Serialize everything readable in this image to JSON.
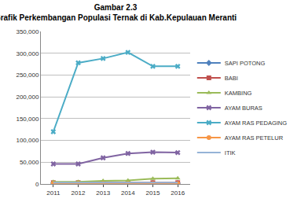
{
  "chart_data": {
    "type": "line",
    "title": "Gambar 2.3",
    "subtitle": "Grafik Perkembangan Populasi Ternak di Kab.Kepulauan Meranti",
    "categories": [
      "2011",
      "2012",
      "2013",
      "2014",
      "2015",
      "2016"
    ],
    "series": [
      {
        "name": "SAPI POTONG",
        "color": "#4f81bd",
        "marker": "diamond",
        "line_style": "solid",
        "values": [
          2000,
          2000,
          2000,
          2000,
          2000,
          2000
        ]
      },
      {
        "name": "BABI",
        "color": "#c0504d",
        "marker": "square",
        "line_style": "solid",
        "values": [
          3000,
          3000,
          3000,
          3000,
          3000,
          3000
        ]
      },
      {
        "name": "KAMBING",
        "color": "#9bbb59",
        "marker": "triangle-up",
        "line_style": "solid",
        "values": [
          5000,
          5000,
          7000,
          8000,
          12000,
          13000
        ]
      },
      {
        "name": "AYAM BURAS",
        "color": "#8064a2",
        "marker": "x",
        "line_style": "solid",
        "values": [
          46000,
          46000,
          60000,
          70000,
          73000,
          72000
        ]
      },
      {
        "name": "AYAM RAS PEDAGING",
        "color": "#4bacc6",
        "marker": "x",
        "line_style": "solid",
        "values": [
          120000,
          278000,
          288000,
          302000,
          270000,
          270000
        ]
      },
      {
        "name": "AYAM RAS PETELUR",
        "color": "#f79646",
        "marker": "circle",
        "line_style": "solid",
        "values": [
          1000,
          1000,
          1000,
          1000,
          1000,
          1000
        ]
      },
      {
        "name": "ITIK",
        "color": "#95b3d7",
        "marker": "none",
        "line_style": "solid",
        "values": [
          3000,
          3000,
          3000,
          3000,
          3000,
          3000
        ]
      }
    ],
    "ylim": [
      0,
      350000
    ],
    "yticks": [
      0,
      {
        "value": 50000,
        "label": "50,000"
      },
      {
        "value": 100000,
        "label": "100,000"
      },
      {
        "value": 150000,
        "label": "150,000"
      },
      {
        "value": 200000,
        "label": "200,000"
      },
      {
        "value": 250000,
        "label": "250,000"
      },
      {
        "value": 300000,
        "label": "300,000"
      },
      {
        "value": 350000,
        "label": "350,000"
      }
    ],
    "grid": true,
    "legend": "right"
  }
}
